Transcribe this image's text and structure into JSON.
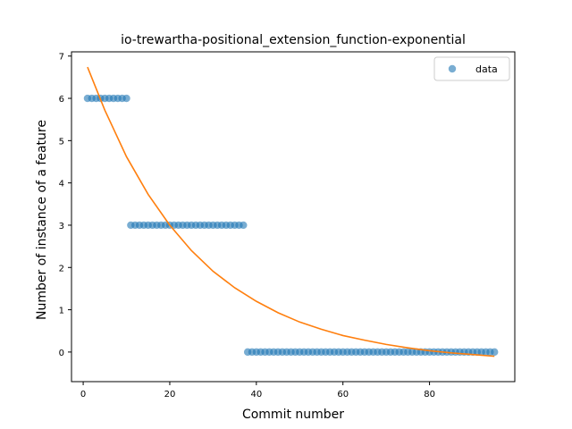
{
  "chart_data": {
    "type": "scatter",
    "title": "io-trewartha-positional_extension_function-exponential",
    "xlabel": "Commit number",
    "ylabel": "Number of instance of a feature",
    "xlim": [
      -2.7,
      99.7
    ],
    "ylim": [
      -0.7,
      7.1
    ],
    "xticks": [
      0,
      20,
      40,
      60,
      80
    ],
    "yticks": [
      0,
      1,
      2,
      3,
      4,
      5,
      6,
      7
    ],
    "grid": false,
    "legend_position": "top-right",
    "series": [
      {
        "name": "data",
        "kind": "scatter",
        "color": "#1f77b4",
        "points": [
          {
            "x_from": 1,
            "x_to": 10,
            "y": 6
          },
          {
            "x_from": 11,
            "x_to": 37,
            "y": 3
          },
          {
            "x_from": 38,
            "x_to": 95,
            "y": 0
          }
        ]
      },
      {
        "kind": "line",
        "color": "#ff7f0e",
        "x": [
          1,
          5,
          10,
          15,
          20,
          25,
          30,
          35,
          40,
          45,
          50,
          55,
          60,
          65,
          70,
          75,
          80,
          85,
          90,
          95
        ],
        "y": [
          6.74,
          5.72,
          4.62,
          3.73,
          3.0,
          2.4,
          1.91,
          1.52,
          1.2,
          0.93,
          0.71,
          0.54,
          0.39,
          0.28,
          0.18,
          0.1,
          0.03,
          -0.02,
          -0.06,
          -0.1
        ]
      }
    ]
  }
}
